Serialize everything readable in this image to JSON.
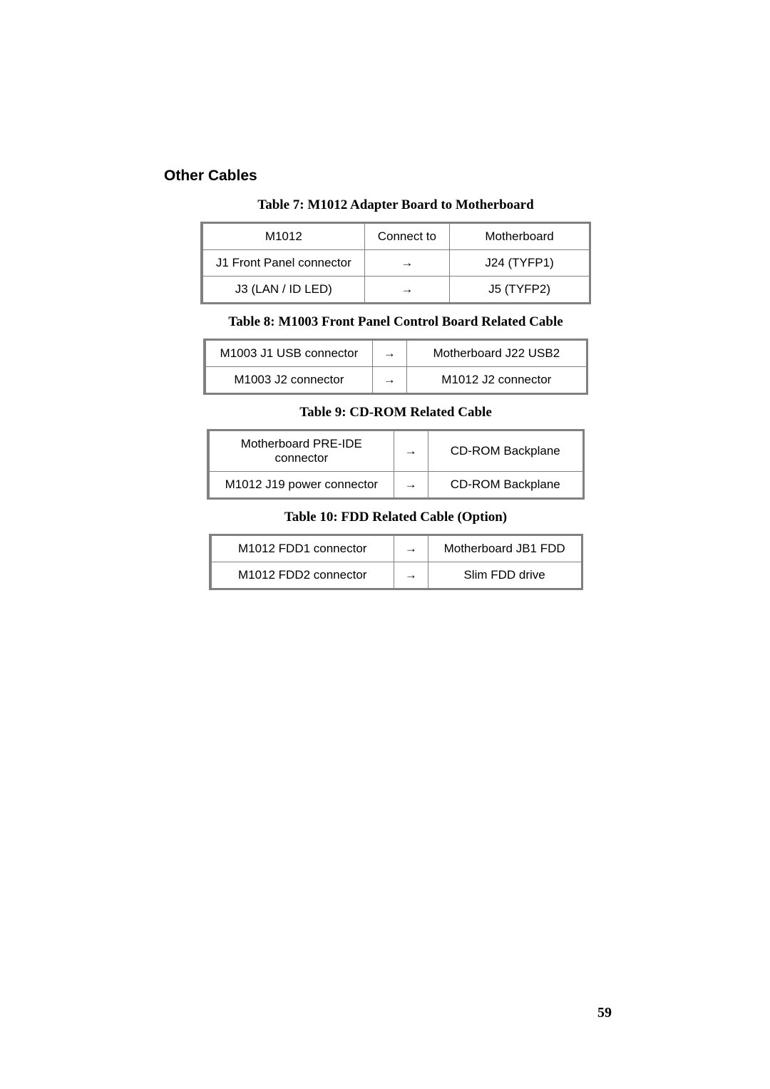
{
  "heading": "Other Cables",
  "arrow": "→",
  "page_number": "59",
  "tables": {
    "t7": {
      "caption": "Table 7: M1012 Adapter Board to Motherboard",
      "header": [
        "M1012",
        "Connect to",
        "Motherboard"
      ],
      "rows": [
        [
          "J1 Front Panel connector",
          "→",
          "J24 (TYFP1)"
        ],
        [
          "J3 (LAN / ID LED)",
          "→",
          "J5 (TYFP2)"
        ]
      ]
    },
    "t8": {
      "caption": "Table 8: M1003 Front Panel Control Board Related Cable",
      "rows": [
        [
          "M1003 J1 USB connector",
          "→",
          "Motherboard J22 USB2"
        ],
        [
          "M1003 J2 connector",
          "→",
          "M1012 J2 connector"
        ]
      ]
    },
    "t9": {
      "caption": "Table 9: CD-ROM Related Cable",
      "rows": [
        [
          "Motherboard PRE-IDE connector",
          "→",
          "CD-ROM Backplane"
        ],
        [
          "M1012 J19 power connector",
          "→",
          "CD-ROM Backplane"
        ]
      ]
    },
    "t10": {
      "caption": "Table 10: FDD Related Cable (Option)",
      "rows": [
        [
          "M1012 FDD1 connector",
          "→",
          "Motherboard JB1 FDD"
        ],
        [
          "M1012 FDD2 connector",
          "→",
          "Slim FDD drive"
        ]
      ]
    }
  }
}
